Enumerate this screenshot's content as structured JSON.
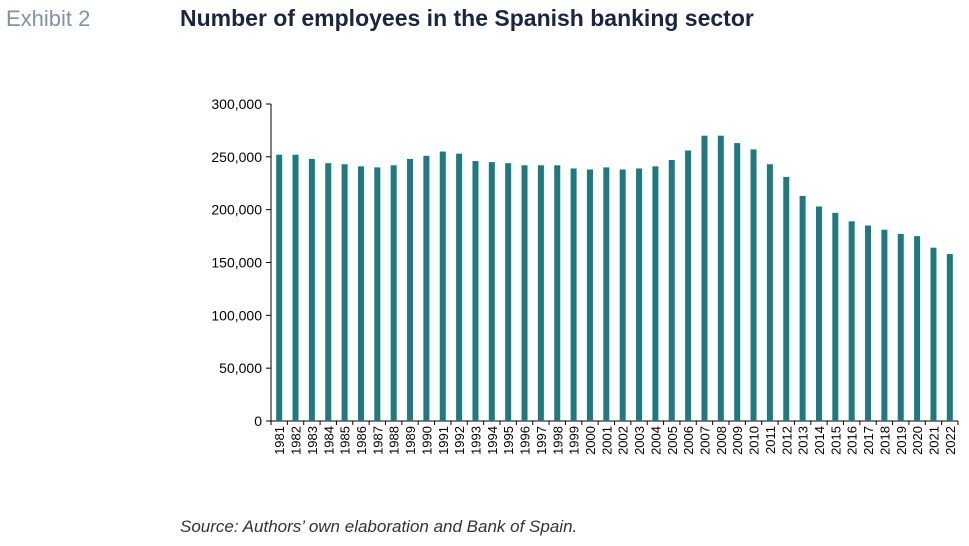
{
  "header": {
    "exhibit_label": "Exhibit 2",
    "title": "Number of employees in the Spanish banking sector"
  },
  "footer": {
    "source": "Source: Authors’ own elaboration and Bank of Spain."
  },
  "colors": {
    "bar": "#1f7a80",
    "axis": "#000000"
  },
  "chart_data": {
    "type": "bar",
    "title": "Number of employees in the Spanish banking sector",
    "xlabel": "",
    "ylabel": "",
    "ylim": [
      0,
      300000
    ],
    "yticks": [
      0,
      50000,
      100000,
      150000,
      200000,
      250000,
      300000
    ],
    "ytick_labels": [
      "0",
      "50,000",
      "100,000",
      "150,000",
      "200,000",
      "250,000",
      "300,000"
    ],
    "grid": false,
    "categories": [
      "1981",
      "1982",
      "1983",
      "1984",
      "1985",
      "1986",
      "1987",
      "1988",
      "1989",
      "1990",
      "1991",
      "1992",
      "1993",
      "1994",
      "1995",
      "1996",
      "1997",
      "1998",
      "1999",
      "2000",
      "2001",
      "2002",
      "2003",
      "2004",
      "2005",
      "2006",
      "2007",
      "2008",
      "2009",
      "2010",
      "2011",
      "2012",
      "2013",
      "2014",
      "2015",
      "2016",
      "2017",
      "2018",
      "2019",
      "2020",
      "2021",
      "2022"
    ],
    "values": [
      252000,
      252000,
      248000,
      244000,
      243000,
      241000,
      240000,
      242000,
      248000,
      251000,
      255000,
      253000,
      246000,
      245000,
      244000,
      242000,
      242000,
      242000,
      239000,
      238000,
      240000,
      238000,
      239000,
      241000,
      247000,
      256000,
      270000,
      270000,
      263000,
      257000,
      243000,
      231000,
      213000,
      203000,
      197000,
      189000,
      185000,
      181000,
      177000,
      175000,
      164000,
      158000
    ]
  }
}
